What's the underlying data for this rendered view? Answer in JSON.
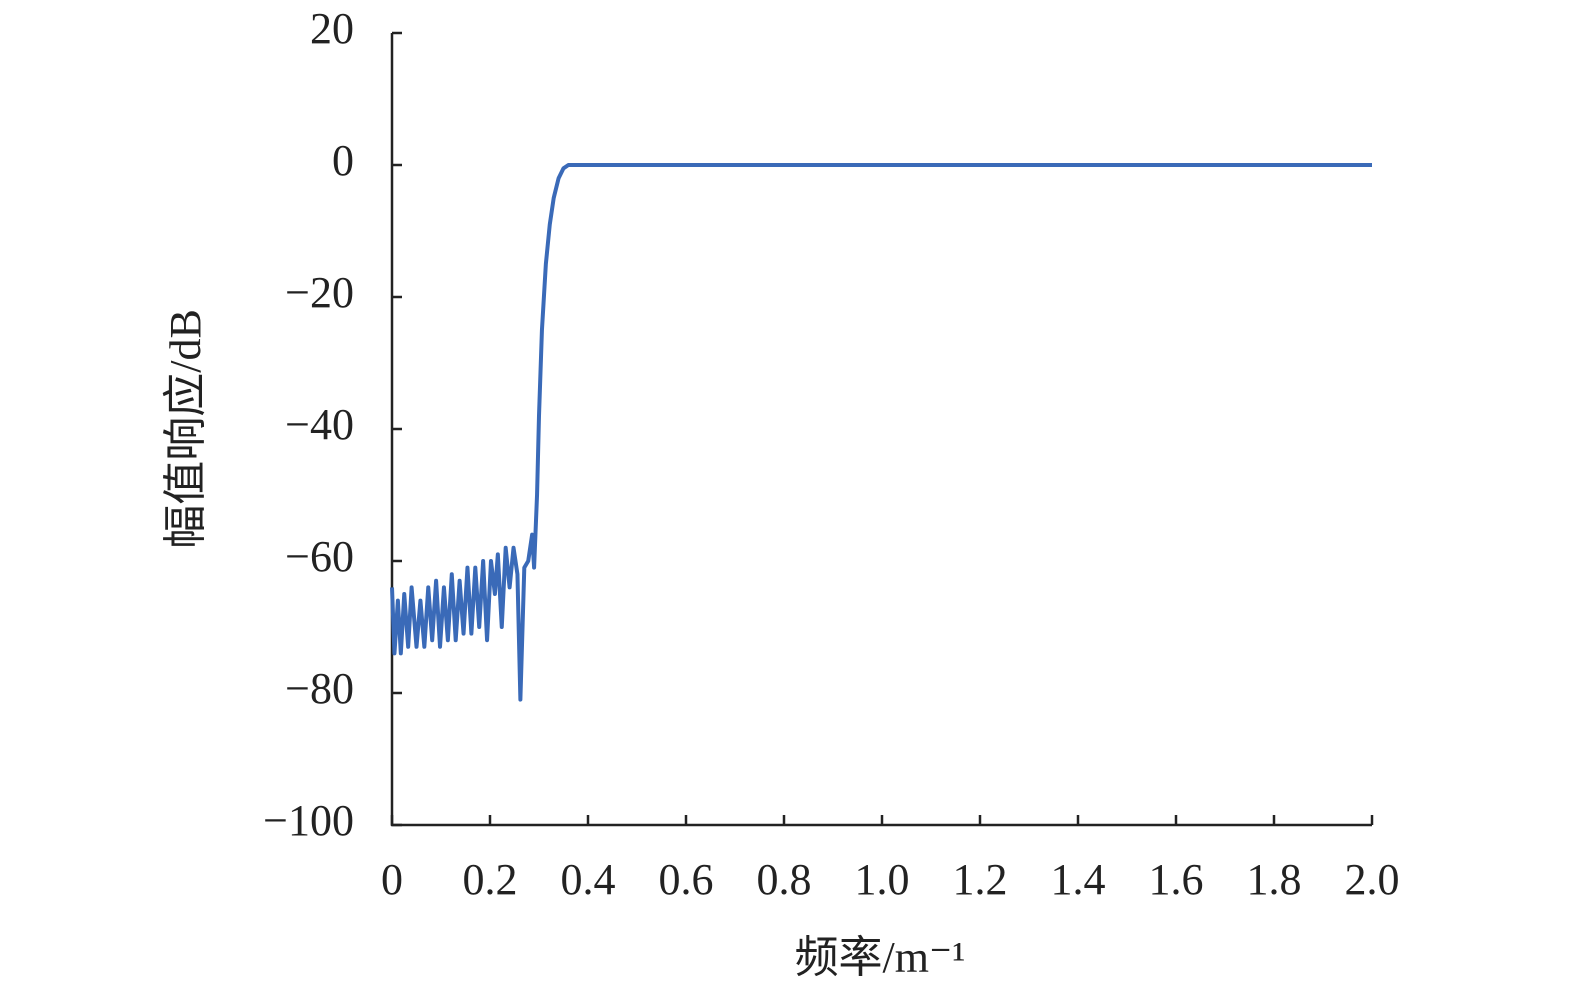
{
  "chart_data": {
    "type": "line",
    "x_label": "频率/m⁻¹",
    "y_label": "幅值响应/dB",
    "x": [
      0,
      0.005,
      0.012,
      0.018,
      0.025,
      0.033,
      0.04,
      0.05,
      0.058,
      0.066,
      0.074,
      0.082,
      0.09,
      0.098,
      0.106,
      0.114,
      0.122,
      0.13,
      0.138,
      0.146,
      0.154,
      0.162,
      0.17,
      0.178,
      0.186,
      0.194,
      0.202,
      0.21,
      0.216,
      0.224,
      0.232,
      0.24,
      0.248,
      0.256,
      0.262,
      0.27,
      0.278,
      0.286,
      0.29,
      0.296,
      0.3,
      0.306,
      0.314,
      0.322,
      0.33,
      0.34,
      0.35,
      0.36,
      0.4,
      2.0
    ],
    "values": [
      -64,
      -74,
      -66,
      -74,
      -65,
      -73,
      -64,
      -73,
      -66,
      -73,
      -64,
      -72,
      -63,
      -73,
      -64,
      -72,
      -62,
      -72,
      -63,
      -71,
      -61,
      -71,
      -61,
      -70,
      -60,
      -72,
      -60,
      -65,
      -59,
      -70,
      -58,
      -64,
      -58,
      -62,
      -81,
      -61,
      -60,
      -56,
      -61,
      -50,
      -38,
      -25,
      -15,
      -9,
      -5,
      -2,
      -0.5,
      0,
      0,
      0
    ],
    "color": "#3a6ab8",
    "xlim": [
      0,
      2.0
    ],
    "xticks": [
      0,
      0.2,
      0.4,
      0.6,
      0.8,
      {
        "value": 1,
        "label": "1.0"
      },
      1.2,
      1.4,
      1.6,
      1.8,
      {
        "value": 2,
        "label": "2.0"
      }
    ],
    "ylim": [
      -100,
      20
    ],
    "yticks": [
      20,
      0,
      {
        "value": -20,
        "label": "−20"
      },
      {
        "value": -40,
        "label": "−40"
      },
      {
        "value": -60,
        "label": "−60"
      },
      {
        "value": -80,
        "label": "−80"
      },
      {
        "value": -100,
        "label": "−100"
      }
    ],
    "grid": false
  }
}
